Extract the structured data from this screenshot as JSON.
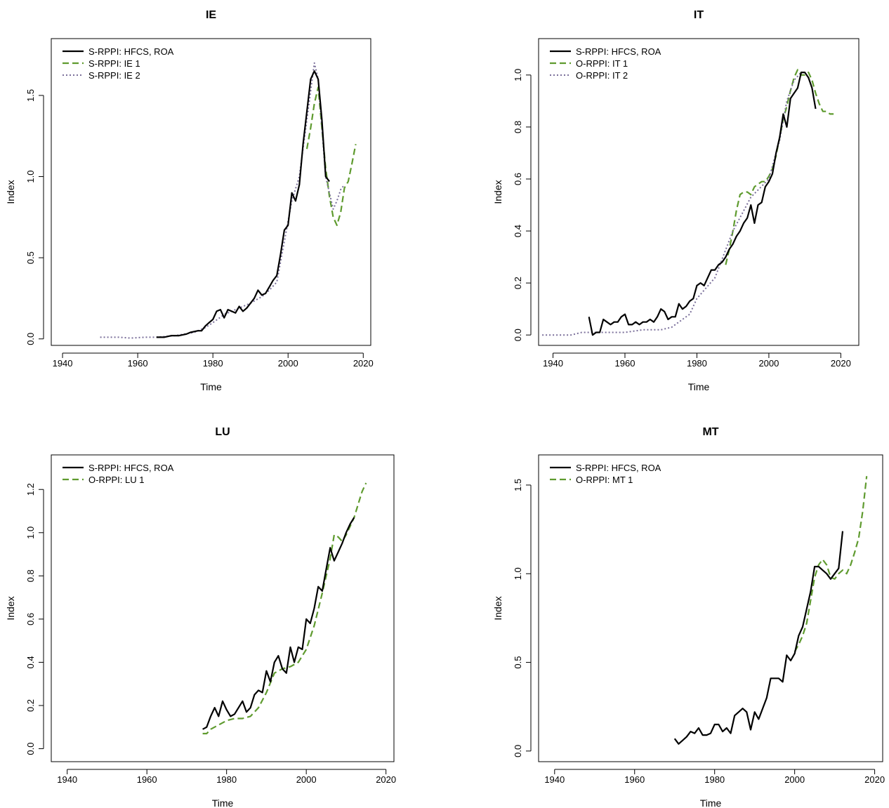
{
  "chart_data": [
    {
      "type": "line",
      "title": "IE",
      "xlabel": "Time",
      "ylabel": "Index",
      "xlim": [
        1937,
        2022
      ],
      "ylim": [
        -0.04,
        1.85
      ],
      "xticks": [
        1940,
        1960,
        1980,
        2000,
        2020
      ],
      "yticks": [
        0.0,
        0.5,
        1.0,
        1.5
      ],
      "legend_position": "top-left",
      "grid": false,
      "series": [
        {
          "name": "S-RPPI: HFCS, ROA",
          "color": "#000000",
          "style": "solid",
          "x": [
            1965,
            1967,
            1969,
            1971,
            1973,
            1974,
            1976,
            1977,
            1978,
            1979,
            1980,
            1981,
            1982,
            1983,
            1984,
            1985,
            1986,
            1987,
            1988,
            1989,
            1990,
            1991,
            1992,
            1993,
            1994,
            1995,
            1996,
            1997,
            1998,
            1999,
            2000,
            2001,
            2002,
            2003,
            2004,
            2005,
            2006,
            2007,
            2008,
            2009,
            2010,
            2011
          ],
          "y": [
            0.01,
            0.01,
            0.02,
            0.02,
            0.03,
            0.04,
            0.05,
            0.05,
            0.08,
            0.1,
            0.12,
            0.17,
            0.18,
            0.13,
            0.18,
            0.17,
            0.16,
            0.2,
            0.17,
            0.19,
            0.22,
            0.25,
            0.3,
            0.27,
            0.28,
            0.32,
            0.36,
            0.39,
            0.52,
            0.67,
            0.7,
            0.9,
            0.85,
            0.95,
            1.2,
            1.4,
            1.6,
            1.65,
            1.6,
            1.35,
            1.0,
            0.97
          ]
        },
        {
          "name": "S-RPPI: IE 1",
          "color": "#5f9b2f",
          "style": "dashed",
          "x": [
            2005,
            2006,
            2007,
            2008,
            2009,
            2010,
            2011,
            2012,
            2013,
            2014,
            2015,
            2016,
            2017,
            2018
          ],
          "y": [
            1.17,
            1.3,
            1.45,
            1.55,
            1.3,
            1.05,
            0.88,
            0.75,
            0.7,
            0.78,
            0.93,
            0.97,
            1.08,
            1.2
          ]
        },
        {
          "name": "S-RPPI: IE 2",
          "color": "#7a6f9a",
          "style": "dotted",
          "x": [
            1950,
            1955,
            1958,
            1962,
            1965,
            1970,
            1975,
            1978,
            1980,
            1983,
            1985,
            1988,
            1990,
            1993,
            1995,
            1997,
            1999,
            2001,
            2003,
            2005,
            2007,
            2008,
            2009,
            2010,
            2011,
            2012,
            2013,
            2014,
            2015
          ],
          "y": [
            0.01,
            0.01,
            0.005,
            0.01,
            0.01,
            0.02,
            0.04,
            0.07,
            0.1,
            0.15,
            0.17,
            0.2,
            0.22,
            0.26,
            0.3,
            0.35,
            0.6,
            0.85,
            1.0,
            1.35,
            1.7,
            1.6,
            1.3,
            1.0,
            0.9,
            0.8,
            0.85,
            0.92,
            0.95
          ]
        }
      ]
    },
    {
      "type": "line",
      "title": "IT",
      "xlabel": "Time",
      "ylabel": "Index",
      "xlim": [
        1936,
        2025
      ],
      "ylim": [
        -0.04,
        1.14
      ],
      "xticks": [
        1940,
        1960,
        1980,
        2000,
        2020
      ],
      "yticks": [
        0.0,
        0.2,
        0.4,
        0.6,
        0.8,
        1.0
      ],
      "legend_position": "top-left",
      "grid": false,
      "series": [
        {
          "name": "S-RPPI: HFCS, ROA",
          "color": "#000000",
          "style": "solid",
          "x": [
            1950,
            1951,
            1952,
            1953,
            1954,
            1955,
            1956,
            1957,
            1958,
            1959,
            1960,
            1961,
            1962,
            1963,
            1964,
            1965,
            1966,
            1967,
            1968,
            1969,
            1970,
            1971,
            1972,
            1973,
            1974,
            1975,
            1976,
            1977,
            1978,
            1979,
            1980,
            1981,
            1982,
            1983,
            1984,
            1985,
            1986,
            1987,
            1988,
            1989,
            1990,
            1991,
            1992,
            1993,
            1994,
            1995,
            1996,
            1997,
            1998,
            1999,
            2000,
            2001,
            2002,
            2003,
            2004,
            2005,
            2006,
            2007,
            2008,
            2009,
            2010,
            2011,
            2012,
            2013
          ],
          "y": [
            0.07,
            0.0,
            0.01,
            0.01,
            0.06,
            0.05,
            0.04,
            0.05,
            0.05,
            0.07,
            0.08,
            0.04,
            0.04,
            0.05,
            0.04,
            0.05,
            0.05,
            0.06,
            0.05,
            0.07,
            0.1,
            0.09,
            0.06,
            0.07,
            0.07,
            0.12,
            0.1,
            0.11,
            0.13,
            0.14,
            0.19,
            0.2,
            0.19,
            0.22,
            0.25,
            0.25,
            0.27,
            0.28,
            0.3,
            0.33,
            0.35,
            0.38,
            0.4,
            0.43,
            0.45,
            0.5,
            0.43,
            0.5,
            0.51,
            0.57,
            0.59,
            0.62,
            0.7,
            0.76,
            0.85,
            0.8,
            0.91,
            0.93,
            0.95,
            1.01,
            1.01,
            0.99,
            0.95,
            0.87
          ]
        },
        {
          "name": "O-RPPI: IT 1",
          "color": "#5f9b2f",
          "style": "dashed",
          "x": [
            1988,
            1989,
            1990,
            1991,
            1992,
            1993,
            1994,
            1995,
            1996,
            1997,
            1998,
            1999,
            2000,
            2001,
            2002,
            2003,
            2004,
            2005,
            2006,
            2007,
            2008,
            2009,
            2010,
            2011,
            2012,
            2013,
            2014,
            2015,
            2016,
            2017,
            2018
          ],
          "y": [
            0.27,
            0.33,
            0.4,
            0.48,
            0.54,
            0.55,
            0.55,
            0.54,
            0.57,
            0.58,
            0.59,
            0.59,
            0.61,
            0.64,
            0.69,
            0.76,
            0.83,
            0.88,
            0.94,
            0.99,
            1.02,
            1.0,
            1.0,
            1.01,
            0.98,
            0.93,
            0.89,
            0.86,
            0.86,
            0.85,
            0.85
          ]
        },
        {
          "name": "O-RPPI: IT 2",
          "color": "#7a6f9a",
          "style": "dotted",
          "x": [
            1937,
            1940,
            1945,
            1948,
            1950,
            1955,
            1960,
            1965,
            1970,
            1973,
            1975,
            1978,
            1980,
            1985,
            1990,
            1995,
            2000,
            2003,
            2005,
            2007,
            2009,
            2010
          ],
          "y": [
            0.0,
            0.0,
            0.0,
            0.01,
            0.01,
            0.01,
            0.01,
            0.02,
            0.02,
            0.03,
            0.05,
            0.08,
            0.14,
            0.22,
            0.4,
            0.53,
            0.6,
            0.75,
            0.9,
            0.98,
            1.01,
            1.01
          ]
        }
      ]
    },
    {
      "type": "line",
      "title": "LU",
      "xlabel": "Time",
      "ylabel": "Index",
      "xlim": [
        1936,
        2022
      ],
      "ylim": [
        -0.06,
        1.36
      ],
      "xticks": [
        1940,
        1960,
        1980,
        2000,
        2020
      ],
      "yticks": [
        0.0,
        0.2,
        0.4,
        0.6,
        0.8,
        1.0,
        1.2
      ],
      "legend_position": "top-left",
      "grid": false,
      "series": [
        {
          "name": "S-RPPI: HFCS, ROA",
          "color": "#000000",
          "style": "solid",
          "x": [
            1974,
            1975,
            1976,
            1977,
            1978,
            1979,
            1980,
            1981,
            1982,
            1983,
            1984,
            1985,
            1986,
            1987,
            1988,
            1989,
            1990,
            1991,
            1992,
            1993,
            1994,
            1995,
            1996,
            1997,
            1998,
            1999,
            2000,
            2001,
            2002,
            2003,
            2004,
            2005,
            2006,
            2007,
            2008,
            2009,
            2010,
            2011,
            2012
          ],
          "y": [
            0.09,
            0.1,
            0.15,
            0.19,
            0.15,
            0.22,
            0.18,
            0.15,
            0.16,
            0.19,
            0.22,
            0.17,
            0.19,
            0.25,
            0.27,
            0.26,
            0.36,
            0.31,
            0.4,
            0.43,
            0.37,
            0.35,
            0.47,
            0.4,
            0.47,
            0.46,
            0.6,
            0.58,
            0.65,
            0.75,
            0.73,
            0.83,
            0.93,
            0.87,
            0.91,
            0.95,
            1.0,
            1.04,
            1.07
          ]
        },
        {
          "name": "O-RPPI: LU 1",
          "color": "#5f9b2f",
          "style": "dashed",
          "x": [
            1974,
            1975,
            1976,
            1978,
            1980,
            1982,
            1984,
            1986,
            1988,
            1990,
            1992,
            1994,
            1996,
            1998,
            2000,
            2002,
            2004,
            2005,
            2006,
            2007,
            2008,
            2009,
            2010,
            2011,
            2012,
            2013,
            2014,
            2015
          ],
          "y": [
            0.07,
            0.07,
            0.09,
            0.11,
            0.13,
            0.14,
            0.14,
            0.15,
            0.19,
            0.26,
            0.35,
            0.37,
            0.38,
            0.4,
            0.46,
            0.57,
            0.72,
            0.8,
            0.88,
            0.99,
            0.98,
            0.96,
            0.99,
            1.03,
            1.07,
            1.13,
            1.19,
            1.23
          ]
        }
      ]
    },
    {
      "type": "line",
      "title": "MT",
      "xlabel": "Time",
      "ylabel": "Index",
      "xlim": [
        1936,
        2022
      ],
      "ylim": [
        -0.06,
        1.67
      ],
      "xticks": [
        1940,
        1960,
        1980,
        2000,
        2020
      ],
      "yticks": [
        0.0,
        0.5,
        1.0,
        1.5
      ],
      "legend_position": "top-left",
      "grid": false,
      "series": [
        {
          "name": "S-RPPI: HFCS, ROA",
          "color": "#000000",
          "style": "solid",
          "x": [
            1970,
            1971,
            1972,
            1973,
            1974,
            1975,
            1976,
            1977,
            1978,
            1979,
            1980,
            1981,
            1982,
            1983,
            1984,
            1985,
            1986,
            1987,
            1988,
            1989,
            1990,
            1991,
            1992,
            1993,
            1994,
            1995,
            1996,
            1997,
            1998,
            1999,
            2000,
            2001,
            2002,
            2003,
            2004,
            2005,
            2006,
            2007,
            2008,
            2009,
            2010,
            2011,
            2012
          ],
          "y": [
            0.07,
            0.04,
            0.06,
            0.08,
            0.11,
            0.1,
            0.13,
            0.09,
            0.09,
            0.1,
            0.15,
            0.15,
            0.11,
            0.13,
            0.1,
            0.2,
            0.22,
            0.24,
            0.22,
            0.12,
            0.22,
            0.18,
            0.24,
            0.3,
            0.41,
            0.41,
            0.41,
            0.39,
            0.54,
            0.51,
            0.55,
            0.65,
            0.7,
            0.8,
            0.9,
            1.04,
            1.04,
            1.02,
            1.0,
            0.97,
            1.0,
            1.03,
            1.24
          ]
        },
        {
          "name": "O-RPPI: MT 1",
          "color": "#5f9b2f",
          "style": "dashed",
          "x": [
            2000,
            2001,
            2002,
            2003,
            2004,
            2005,
            2006,
            2007,
            2008,
            2009,
            2010,
            2011,
            2012,
            2013,
            2014,
            2015,
            2016,
            2017,
            2018
          ],
          "y": [
            0.56,
            0.6,
            0.65,
            0.72,
            0.85,
            0.98,
            1.05,
            1.08,
            1.05,
            0.98,
            0.97,
            1.0,
            1.02,
            1.0,
            1.05,
            1.12,
            1.2,
            1.35,
            1.55
          ]
        }
      ]
    }
  ]
}
